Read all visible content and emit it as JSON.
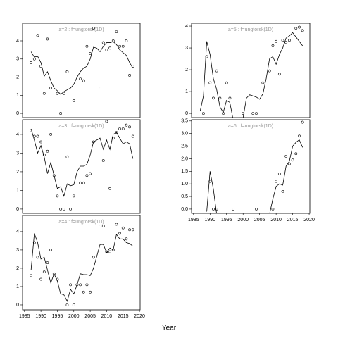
{
  "xlabel": "Year",
  "chart_data": [
    {
      "type": "scatter-line",
      "title": "a=2 : f=ungtorsk(1D)",
      "x": [
        1987,
        1988,
        1989,
        1990,
        1991,
        1992,
        1993,
        1995,
        1996,
        1997,
        1998,
        2000,
        2002,
        2003,
        2004,
        2005,
        2006,
        2008,
        2009,
        2010,
        2011,
        2012,
        2013,
        2014,
        2015,
        2016,
        2017,
        2018
      ],
      "values": [
        2.8,
        3.0,
        4.3,
        2.6,
        1.1,
        4.1,
        1.4,
        1.1,
        0.0,
        1.1,
        2.3,
        0.7,
        1.9,
        1.8,
        3.7,
        3.3,
        4.7,
        1.4,
        3.9,
        3.5,
        3.6,
        4.0,
        4.5,
        3.7,
        3.7,
        4.0,
        2.1,
        2.6
      ],
      "fit": {
        "x": [
          1987,
          1988,
          1989,
          1990,
          1991,
          1992,
          1993,
          1994,
          1995,
          1996,
          1997,
          1998,
          1999,
          2000,
          2001,
          2002,
          2003,
          2004,
          2005,
          2006,
          2007,
          2008,
          2009,
          2010,
          2011,
          2012,
          2013,
          2014,
          2015,
          2016,
          2017,
          2018
        ],
        "values": [
          3.4,
          3.1,
          3.15,
          2.8,
          2.05,
          2.3,
          1.8,
          1.4,
          1.25,
          1.05,
          1.2,
          1.3,
          1.4,
          1.6,
          2.0,
          2.3,
          2.5,
          2.6,
          3.0,
          3.65,
          3.6,
          3.4,
          3.7,
          3.9,
          3.9,
          3.95,
          3.8,
          3.5,
          3.35,
          3.2,
          2.8,
          2.5
        ]
      },
      "xlim": [
        1984.4,
        2020.2
      ],
      "ylim": [
        -0.23,
        4.97
      ],
      "yticks": [
        0,
        1,
        2,
        3,
        4
      ]
    },
    {
      "type": "scatter-line",
      "title": "a=3 : f=ungtorsk(1D)",
      "x": [
        1987,
        1988,
        1989,
        1990,
        1991,
        1992,
        1993,
        1994,
        1995,
        1996,
        1997,
        1998,
        1999,
        2000,
        2002,
        2003,
        2004,
        2005,
        2006,
        2008,
        2009,
        2010,
        2011,
        2012,
        2013,
        2014,
        2015,
        2016,
        2017,
        2018
      ],
      "values": [
        4.2,
        3.9,
        3.9,
        3.6,
        2.9,
        3.1,
        4.0,
        1.8,
        0.7,
        0,
        0,
        2.8,
        0,
        0.7,
        1.4,
        1.4,
        1.8,
        1.9,
        3.6,
        3.8,
        2.6,
        4.7,
        1.1,
        3.8,
        4.1,
        4.3,
        4.3,
        4.5,
        4.4,
        3.9
      ],
      "fit": {
        "x": [
          1987,
          1988,
          1989,
          1990,
          1991,
          1992,
          1993,
          1994,
          1995,
          1996,
          1997,
          1998,
          1999,
          2000,
          2001,
          2002,
          2003,
          2004,
          2005,
          2006,
          2007,
          2008,
          2009,
          2010,
          2011,
          2012,
          2013,
          2014,
          2015,
          2016,
          2017,
          2018
        ],
        "values": [
          4.3,
          3.7,
          3.0,
          3.4,
          2.8,
          1.9,
          2.5,
          1.8,
          1.1,
          1.2,
          0.7,
          1.35,
          1.25,
          1.3,
          2.0,
          2.3,
          2.3,
          2.4,
          2.9,
          3.6,
          3.7,
          3.8,
          3.2,
          3.7,
          3.2,
          4.0,
          4.1,
          3.8,
          3.5,
          3.6,
          3.5,
          2.7
        ]
      },
      "xlim": [
        1984.4,
        2020.2
      ],
      "ylim": [
        -0.23,
        4.79
      ],
      "yticks": [
        0,
        1,
        2,
        3,
        4
      ]
    },
    {
      "type": "scatter-line",
      "title": "a=4 : f=ungtorsk(1D)",
      "x": [
        1987,
        1988,
        1989,
        1990,
        1991,
        1992,
        1993,
        1994,
        1995,
        1998,
        1999,
        2000,
        2001,
        2002,
        2003,
        2004,
        2005,
        2006,
        2008,
        2009,
        2010,
        2011,
        2012,
        2013,
        2014,
        2015,
        2016,
        2017,
        2018
      ],
      "values": [
        1.6,
        3.4,
        2.6,
        1.4,
        1.8,
        2.3,
        3.0,
        1.7,
        1.4,
        0,
        1.1,
        0,
        1.1,
        1.1,
        0.7,
        1.1,
        0.7,
        2.6,
        4.3,
        4.3,
        2.9,
        2.9,
        3.0,
        4.4,
        3.9,
        4.2,
        3.6,
        4.1,
        4.1
      ],
      "fit": {
        "x": [
          1987,
          1988,
          1989,
          1990,
          1991,
          1992,
          1993,
          1994,
          1995,
          1996,
          1997,
          1998,
          1999,
          2000,
          2001,
          2002,
          2003,
          2004,
          2005,
          2006,
          2007,
          2008,
          2009,
          2010,
          2011,
          2012,
          2013,
          2014,
          2015,
          2016,
          2017,
          2018
        ],
        "values": [
          1.9,
          3.9,
          3.4,
          2.5,
          2.6,
          1.9,
          1.2,
          1.7,
          1.3,
          0.6,
          0.55,
          0.2,
          0.85,
          0.6,
          1.1,
          1.7,
          1.65,
          1.65,
          1.6,
          2.0,
          2.65,
          3.3,
          3.3,
          2.85,
          3.1,
          3.0,
          3.85,
          3.6,
          3.6,
          3.4,
          3.35,
          3.2
        ]
      },
      "xlim": [
        1984.4,
        2020.2
      ],
      "ylim": [
        -0.27,
        4.88
      ],
      "yticks": [
        0,
        1,
        2,
        3,
        4
      ],
      "xticks": [
        1985,
        1990,
        1995,
        2000,
        2005,
        2010,
        2015,
        2020
      ]
    },
    {
      "type": "scatter-line",
      "title": "a=5 : f=ungtorsk(1D)",
      "x": [
        1988,
        1989,
        1990,
        1991,
        1992,
        1993,
        1994,
        1995,
        1996,
        2000,
        2003,
        2004,
        2006,
        2008,
        2009,
        2010,
        2011,
        2012,
        2013,
        2014,
        2016,
        2017,
        2018
      ],
      "values": [
        0,
        2.6,
        1.4,
        0.7,
        1.95,
        0.7,
        0,
        1.4,
        0.7,
        0,
        0,
        0,
        1.4,
        1.95,
        3.1,
        3.3,
        1.8,
        3.35,
        3.25,
        3.35,
        3.9,
        3.95,
        3.8
      ],
      "fit": {
        "x": [
          1987,
          1988,
          1989,
          1990,
          1991,
          1992,
          1993,
          1994,
          1995,
          1996,
          1997,
          1998,
          1999,
          2000,
          2001,
          2002,
          2003,
          2004,
          2005,
          2006,
          2007,
          2008,
          2009,
          2010,
          2011,
          2012,
          2013,
          2014,
          2015,
          2016,
          2017,
          2018
        ],
        "values": [
          0.1,
          0.8,
          3.3,
          2.7,
          1.6,
          1.1,
          0.3,
          0.05,
          0.6,
          0.5,
          -0.3,
          -0.3,
          -0.2,
          -0.2,
          0.7,
          0.85,
          0.8,
          0.75,
          0.65,
          0.9,
          1.6,
          2.5,
          2.6,
          2.25,
          2.7,
          3.0,
          3.45,
          3.55,
          3.7,
          3.5,
          3.3,
          3.1
        ]
      },
      "xlim": [
        1984.4,
        2020.2
      ],
      "ylim": [
        -0.19,
        4.13
      ],
      "yticks": [
        0,
        1,
        2,
        3,
        4
      ]
    },
    {
      "type": "scatter-line",
      "title": "a=6 : f=ungtorsk(1D)",
      "x": [
        1990,
        1991,
        1992,
        1997,
        2004,
        2009,
        2010,
        2011,
        2012,
        2013,
        2014,
        2015,
        2016,
        2017,
        2018
      ],
      "values": [
        1.1,
        0,
        0,
        0,
        0,
        0,
        1.1,
        1.4,
        0.7,
        2.1,
        1.8,
        1.95,
        2.2,
        2.9,
        3.45
      ],
      "fit": {
        "x": [
          1989,
          1990,
          1991,
          1992,
          2000,
          2008,
          2009,
          2010,
          2011,
          2012,
          2013,
          2014,
          2015,
          2016,
          2017,
          2018
        ],
        "values": [
          -0.1,
          1.5,
          0.8,
          -0.2,
          null,
          -0.2,
          0.4,
          0.9,
          1.0,
          0.95,
          1.7,
          1.9,
          2.5,
          2.65,
          2.75,
          2.45
        ]
      },
      "xlim": [
        1984.4,
        2020.2
      ],
      "ylim": [
        -0.17,
        3.55
      ],
      "yticks": [
        {
          "value": 0,
          "label": "0.0"
        },
        {
          "value": 0.5,
          "label": "0.5"
        },
        {
          "value": 1,
          "label": "1.0"
        },
        {
          "value": 1.5,
          "label": "1.5"
        },
        {
          "value": 2,
          "label": "2.0"
        },
        {
          "value": 2.5,
          "label": "2.5"
        },
        {
          "value": 3,
          "label": "3.0"
        },
        {
          "value": 3.5,
          "label": "3.5"
        }
      ],
      "xticks": [
        1985,
        1990,
        1995,
        2000,
        2005,
        2010,
        2015,
        2020
      ]
    }
  ]
}
